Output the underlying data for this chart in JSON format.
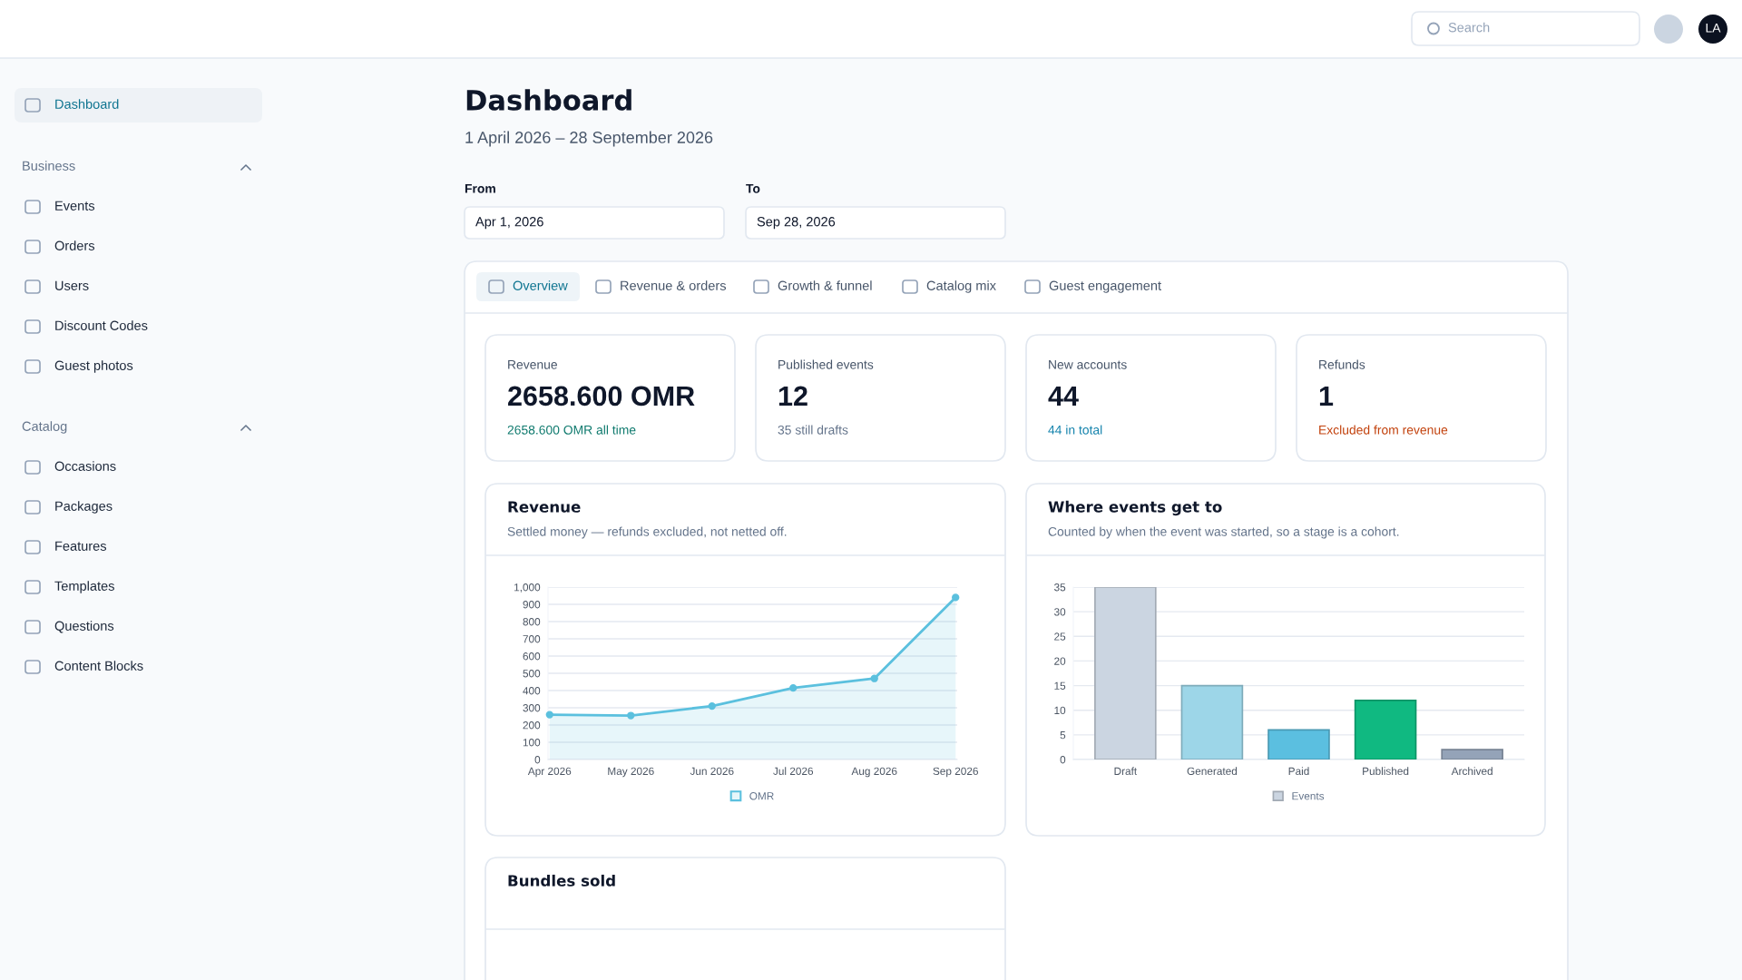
{
  "chart_data": [
    {
      "type": "other",
      "annotations": [
        "Search",
        "LA"
      ]
    },
    {
      "type": "other",
      "annotations": [
        "Dashboard"
      ]
    },
    {
      "type": "other",
      "title": "Business",
      "annotations": [
        "Events",
        "Orders",
        "Users",
        "Discount Codes",
        "Guest photos"
      ]
    },
    {
      "type": "other",
      "title": "Catalog",
      "annotations": [
        "Occasions",
        "Packages",
        "Features",
        "Templates",
        "Questions",
        "Content Blocks"
      ]
    },
    {
      "type": "other",
      "title": "Dashboard",
      "subtitle": "1 April 2026 – 28 September 2026",
      "annotations": [
        "From",
        "Apr 1, 2026",
        "To",
        "Sep 28, 2026"
      ]
    },
    {
      "type": "other",
      "annotations": [
        "Overview",
        "Revenue & orders",
        "Growth & funnel",
        "Catalog mix",
        "Guest engagement"
      ]
    },
    {
      "type": "other",
      "title": "Revenue",
      "subtitle": "2658.600 OMR",
      "annotations": [
        "2658.600 OMR all time"
      ]
    },
    {
      "type": "other",
      "title": "Published events",
      "subtitle": "12",
      "annotations": [
        "35 still drafts"
      ]
    },
    {
      "type": "other",
      "title": "New accounts",
      "subtitle": "44",
      "annotations": [
        "44 in total"
      ]
    },
    {
      "type": "other",
      "title": "Refunds",
      "subtitle": "1",
      "annotations": [
        "Excluded from revenue"
      ]
    },
    {
      "type": "area",
      "title": "Revenue",
      "subtitle": "Settled money — refunds excluded, not netted off.",
      "categories": [
        "Apr 2026",
        "May 2026",
        "Jun 2026",
        "Jul 2026",
        "Aug 2026",
        "Sep 2026"
      ],
      "series": [
        {
          "name": "OMR",
          "color": "#5bc0de",
          "values": [
            260,
            255,
            310,
            415,
            470,
            940
          ]
        }
      ],
      "ylim": [
        0,
        1000
      ],
      "yticks": [
        0,
        100,
        200,
        300,
        400,
        500,
        600,
        700,
        800,
        900,
        {
          "value": 1000,
          "label": "1,000"
        }
      ],
      "grid": "y",
      "legend": "bottom",
      "marker": "circle",
      "line_style": "solid"
    },
    {
      "type": "bar",
      "title": "Where events get to",
      "subtitle": "Counted by when the event was started, so a stage is a cohort.",
      "categories": [
        "Draft",
        "Generated",
        "Paid",
        "Published",
        "Archived"
      ],
      "series": [
        {
          "name": "Events",
          "color": "#cbd5e1",
          "colors": [
            "#cbd5e1",
            "#9dd6e8",
            "#5bbfe0",
            "#10b981",
            "#94a3b8"
          ],
          "values": [
            35,
            15,
            6,
            12,
            2
          ]
        }
      ],
      "ylim": [
        0,
        35
      ],
      "yticks": [
        0,
        5,
        10,
        15,
        20,
        25,
        30,
        35
      ],
      "grid": "y",
      "legend": "bottom"
    },
    {
      "type": "other",
      "title": "Bundles sold"
    }
  ]
}
